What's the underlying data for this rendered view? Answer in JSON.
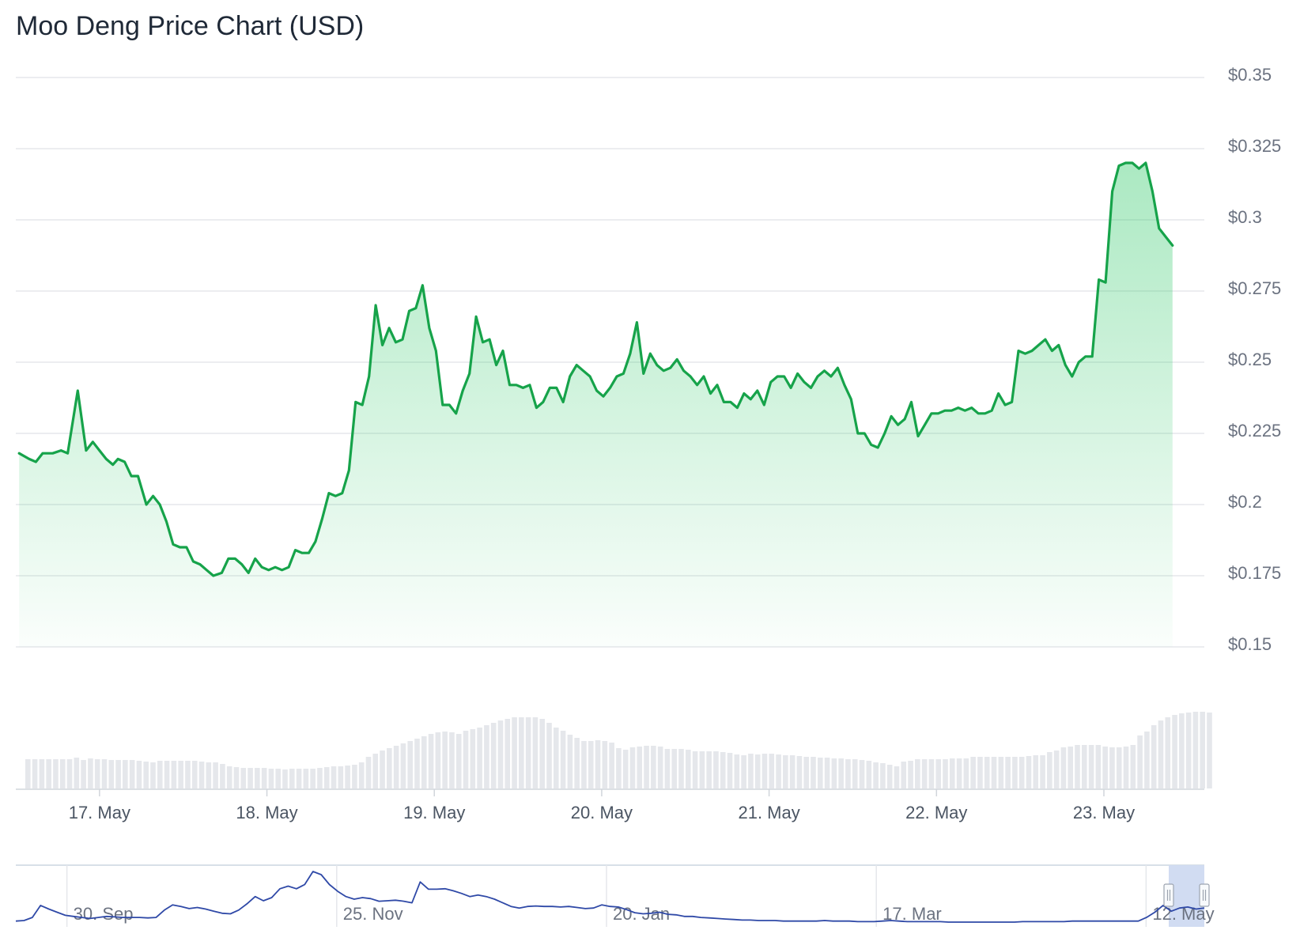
{
  "chart_data": {
    "type": "area",
    "title": "Moo Deng Price Chart (USD)",
    "ylim": [
      0.15,
      0.35
    ],
    "y_ticks": [
      "$0.35",
      "$0.325",
      "$0.3",
      "$0.275",
      "$0.25",
      "$0.225",
      "$0.2",
      "$0.175",
      "$0.15"
    ],
    "y_tick_values": [
      0.35,
      0.325,
      0.3,
      0.275,
      0.25,
      0.225,
      0.2,
      0.175,
      0.15
    ],
    "x_ticks": [
      "17. May",
      "18. May",
      "19. May",
      "20. May",
      "21. May",
      "22. May",
      "23. May"
    ],
    "x_tick_values": [
      0.5,
      1.5,
      2.5,
      3.5,
      4.5,
      5.5,
      6.5
    ],
    "xlim": [
      0.0,
      7.1
    ],
    "grid": true,
    "line_color": "#16a34a",
    "price": [
      [
        0.02,
        0.218
      ],
      [
        0.08,
        0.216
      ],
      [
        0.12,
        0.215
      ],
      [
        0.16,
        0.218
      ],
      [
        0.22,
        0.218
      ],
      [
        0.27,
        0.219
      ],
      [
        0.31,
        0.218
      ],
      [
        0.37,
        0.24
      ],
      [
        0.42,
        0.219
      ],
      [
        0.46,
        0.222
      ],
      [
        0.5,
        0.219
      ],
      [
        0.54,
        0.216
      ],
      [
        0.58,
        0.214
      ],
      [
        0.61,
        0.216
      ],
      [
        0.65,
        0.215
      ],
      [
        0.69,
        0.21
      ],
      [
        0.73,
        0.21
      ],
      [
        0.78,
        0.2
      ],
      [
        0.82,
        0.203
      ],
      [
        0.86,
        0.2
      ],
      [
        0.9,
        0.194
      ],
      [
        0.94,
        0.186
      ],
      [
        0.98,
        0.185
      ],
      [
        1.02,
        0.185
      ],
      [
        1.06,
        0.18
      ],
      [
        1.1,
        0.179
      ],
      [
        1.14,
        0.177
      ],
      [
        1.18,
        0.175
      ],
      [
        1.23,
        0.176
      ],
      [
        1.27,
        0.181
      ],
      [
        1.31,
        0.181
      ],
      [
        1.35,
        0.179
      ],
      [
        1.39,
        0.176
      ],
      [
        1.43,
        0.181
      ],
      [
        1.47,
        0.178
      ],
      [
        1.51,
        0.177
      ],
      [
        1.55,
        0.178
      ],
      [
        1.59,
        0.177
      ],
      [
        1.63,
        0.178
      ],
      [
        1.67,
        0.184
      ],
      [
        1.71,
        0.183
      ],
      [
        1.75,
        0.183
      ],
      [
        1.79,
        0.187
      ],
      [
        1.83,
        0.195
      ],
      [
        1.87,
        0.204
      ],
      [
        1.91,
        0.203
      ],
      [
        1.95,
        0.204
      ],
      [
        1.99,
        0.212
      ],
      [
        2.03,
        0.236
      ],
      [
        2.07,
        0.235
      ],
      [
        2.11,
        0.245
      ],
      [
        2.15,
        0.27
      ],
      [
        2.19,
        0.256
      ],
      [
        2.23,
        0.262
      ],
      [
        2.27,
        0.257
      ],
      [
        2.31,
        0.258
      ],
      [
        2.35,
        0.268
      ],
      [
        2.39,
        0.269
      ],
      [
        2.43,
        0.277
      ],
      [
        2.47,
        0.262
      ],
      [
        2.51,
        0.254
      ],
      [
        2.55,
        0.235
      ],
      [
        2.59,
        0.235
      ],
      [
        2.63,
        0.232
      ],
      [
        2.67,
        0.24
      ],
      [
        2.71,
        0.246
      ],
      [
        2.75,
        0.266
      ],
      [
        2.79,
        0.257
      ],
      [
        2.83,
        0.258
      ],
      [
        2.87,
        0.249
      ],
      [
        2.91,
        0.254
      ],
      [
        2.95,
        0.242
      ],
      [
        2.99,
        0.242
      ],
      [
        3.03,
        0.241
      ],
      [
        3.07,
        0.242
      ],
      [
        3.11,
        0.234
      ],
      [
        3.15,
        0.236
      ],
      [
        3.19,
        0.241
      ],
      [
        3.23,
        0.241
      ],
      [
        3.27,
        0.236
      ],
      [
        3.31,
        0.245
      ],
      [
        3.35,
        0.249
      ],
      [
        3.39,
        0.247
      ],
      [
        3.43,
        0.245
      ],
      [
        3.47,
        0.24
      ],
      [
        3.51,
        0.238
      ],
      [
        3.55,
        0.241
      ],
      [
        3.59,
        0.245
      ],
      [
        3.63,
        0.246
      ],
      [
        3.67,
        0.253
      ],
      [
        3.71,
        0.264
      ],
      [
        3.75,
        0.246
      ],
      [
        3.79,
        0.253
      ],
      [
        3.83,
        0.249
      ],
      [
        3.87,
        0.247
      ],
      [
        3.91,
        0.248
      ],
      [
        3.95,
        0.251
      ],
      [
        3.99,
        0.247
      ],
      [
        4.03,
        0.245
      ],
      [
        4.07,
        0.242
      ],
      [
        4.11,
        0.245
      ],
      [
        4.15,
        0.239
      ],
      [
        4.19,
        0.242
      ],
      [
        4.23,
        0.236
      ],
      [
        4.27,
        0.236
      ],
      [
        4.31,
        0.234
      ],
      [
        4.35,
        0.239
      ],
      [
        4.39,
        0.237
      ],
      [
        4.43,
        0.24
      ],
      [
        4.47,
        0.235
      ],
      [
        4.51,
        0.243
      ],
      [
        4.55,
        0.245
      ],
      [
        4.59,
        0.245
      ],
      [
        4.63,
        0.241
      ],
      [
        4.67,
        0.246
      ],
      [
        4.71,
        0.243
      ],
      [
        4.75,
        0.241
      ],
      [
        4.79,
        0.245
      ],
      [
        4.83,
        0.247
      ],
      [
        4.87,
        0.245
      ],
      [
        4.91,
        0.248
      ],
      [
        4.95,
        0.242
      ],
      [
        4.99,
        0.237
      ],
      [
        5.03,
        0.225
      ],
      [
        5.07,
        0.225
      ],
      [
        5.11,
        0.221
      ],
      [
        5.15,
        0.22
      ],
      [
        5.19,
        0.225
      ],
      [
        5.23,
        0.231
      ],
      [
        5.27,
        0.228
      ],
      [
        5.31,
        0.23
      ],
      [
        5.35,
        0.236
      ],
      [
        5.39,
        0.224
      ],
      [
        5.43,
        0.228
      ],
      [
        5.47,
        0.232
      ],
      [
        5.51,
        0.232
      ],
      [
        5.55,
        0.233
      ],
      [
        5.59,
        0.233
      ],
      [
        5.63,
        0.234
      ],
      [
        5.67,
        0.233
      ],
      [
        5.71,
        0.234
      ],
      [
        5.75,
        0.232
      ],
      [
        5.79,
        0.232
      ],
      [
        5.83,
        0.233
      ],
      [
        5.87,
        0.239
      ],
      [
        5.91,
        0.235
      ],
      [
        5.95,
        0.236
      ],
      [
        5.99,
        0.254
      ],
      [
        6.03,
        0.253
      ],
      [
        6.07,
        0.254
      ],
      [
        6.11,
        0.256
      ],
      [
        6.15,
        0.258
      ],
      [
        6.19,
        0.254
      ],
      [
        6.23,
        0.256
      ],
      [
        6.27,
        0.249
      ],
      [
        6.31,
        0.245
      ],
      [
        6.35,
        0.25
      ],
      [
        6.39,
        0.252
      ],
      [
        6.43,
        0.252
      ],
      [
        6.47,
        0.279
      ],
      [
        6.51,
        0.278
      ],
      [
        6.55,
        0.31
      ],
      [
        6.59,
        0.319
      ],
      [
        6.63,
        0.32
      ],
      [
        6.67,
        0.32
      ],
      [
        6.71,
        0.318
      ],
      [
        6.75,
        0.32
      ],
      [
        6.79,
        0.31
      ],
      [
        6.83,
        0.297
      ],
      [
        6.87,
        0.294
      ],
      [
        6.91,
        0.291
      ]
    ],
    "volume_relative": [
      0.37,
      0.37,
      0.37,
      0.37,
      0.37,
      0.37,
      0.37,
      0.39,
      0.36,
      0.38,
      0.37,
      0.37,
      0.36,
      0.36,
      0.36,
      0.36,
      0.35,
      0.34,
      0.33,
      0.35,
      0.35,
      0.35,
      0.35,
      0.35,
      0.35,
      0.34,
      0.33,
      0.33,
      0.31,
      0.28,
      0.27,
      0.26,
      0.26,
      0.26,
      0.26,
      0.25,
      0.25,
      0.24,
      0.25,
      0.25,
      0.25,
      0.25,
      0.26,
      0.27,
      0.28,
      0.28,
      0.29,
      0.3,
      0.33,
      0.4,
      0.44,
      0.48,
      0.51,
      0.54,
      0.57,
      0.6,
      0.63,
      0.66,
      0.69,
      0.71,
      0.72,
      0.71,
      0.69,
      0.73,
      0.75,
      0.77,
      0.8,
      0.83,
      0.86,
      0.88,
      0.9,
      0.9,
      0.9,
      0.9,
      0.88,
      0.83,
      0.77,
      0.73,
      0.68,
      0.64,
      0.6,
      0.6,
      0.61,
      0.6,
      0.58,
      0.51,
      0.49,
      0.52,
      0.53,
      0.54,
      0.54,
      0.53,
      0.5,
      0.5,
      0.5,
      0.49,
      0.47,
      0.47,
      0.47,
      0.47,
      0.46,
      0.45,
      0.43,
      0.42,
      0.44,
      0.43,
      0.44,
      0.44,
      0.43,
      0.42,
      0.42,
      0.41,
      0.4,
      0.4,
      0.39,
      0.39,
      0.38,
      0.38,
      0.37,
      0.37,
      0.36,
      0.35,
      0.33,
      0.32,
      0.3,
      0.28,
      0.34,
      0.35,
      0.37,
      0.37,
      0.37,
      0.37,
      0.37,
      0.38,
      0.38,
      0.38,
      0.4,
      0.4,
      0.4,
      0.4,
      0.4,
      0.4,
      0.4,
      0.4,
      0.41,
      0.42,
      0.42,
      0.46,
      0.48,
      0.52,
      0.53,
      0.55,
      0.55,
      0.55,
      0.55,
      0.53,
      0.52,
      0.52,
      0.53,
      0.55,
      0.67,
      0.72,
      0.8,
      0.86,
      0.9,
      0.93,
      0.95,
      0.96,
      0.97,
      0.97,
      0.96
    ],
    "navigator": {
      "ticks": [
        "30. Sep",
        "25. Nov",
        "20. Jan",
        "17. Mar",
        "12. May"
      ],
      "tick_positions": [
        0.043,
        0.27,
        0.497,
        0.724,
        0.951
      ],
      "series": [
        0.05,
        0.06,
        0.12,
        0.35,
        0.28,
        0.22,
        0.16,
        0.14,
        0.12,
        0.1,
        0.12,
        0.14,
        0.13,
        0.12,
        0.12,
        0.12,
        0.11,
        0.12,
        0.26,
        0.36,
        0.33,
        0.29,
        0.31,
        0.28,
        0.24,
        0.2,
        0.19,
        0.26,
        0.38,
        0.52,
        0.44,
        0.5,
        0.67,
        0.72,
        0.67,
        0.75,
        1.0,
        0.94,
        0.75,
        0.62,
        0.52,
        0.47,
        0.5,
        0.48,
        0.43,
        0.44,
        0.45,
        0.43,
        0.4,
        0.8,
        0.66,
        0.66,
        0.67,
        0.63,
        0.58,
        0.52,
        0.55,
        0.52,
        0.47,
        0.4,
        0.33,
        0.3,
        0.33,
        0.34,
        0.33,
        0.33,
        0.32,
        0.33,
        0.31,
        0.29,
        0.3,
        0.36,
        0.33,
        0.32,
        0.27,
        0.21,
        0.19,
        0.2,
        0.22,
        0.18,
        0.17,
        0.14,
        0.14,
        0.12,
        0.11,
        0.1,
        0.09,
        0.08,
        0.07,
        0.07,
        0.06,
        0.06,
        0.06,
        0.05,
        0.05,
        0.05,
        0.05,
        0.05,
        0.06,
        0.05,
        0.05,
        0.05,
        0.04,
        0.04,
        0.04,
        0.05,
        0.06,
        0.05,
        0.04,
        0.04,
        0.04,
        0.04,
        0.04,
        0.03,
        0.03,
        0.03,
        0.03,
        0.03,
        0.03,
        0.03,
        0.03,
        0.03,
        0.04,
        0.04,
        0.04,
        0.04,
        0.04,
        0.04,
        0.05,
        0.05,
        0.05,
        0.05,
        0.05,
        0.05,
        0.05,
        0.05,
        0.05,
        0.12,
        0.22,
        0.35,
        0.24,
        0.3,
        0.32,
        0.28,
        0.3
      ],
      "line_color": "#2f49a7",
      "selection_color": "#d1dcf2"
    }
  }
}
